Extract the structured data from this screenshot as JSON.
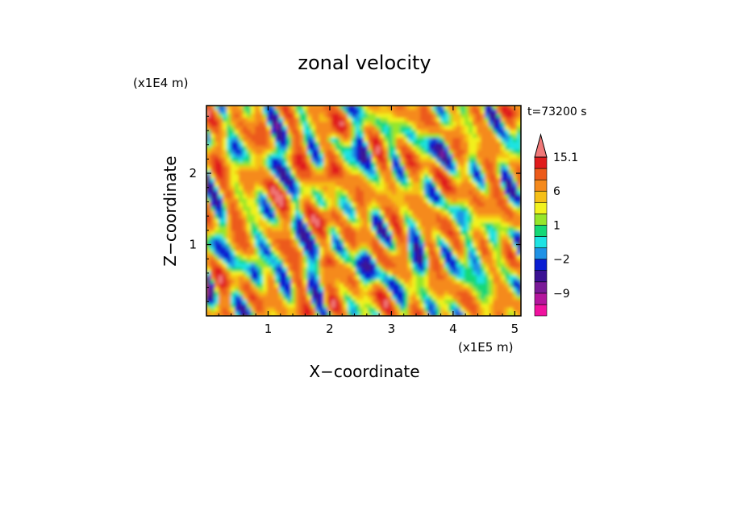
{
  "chart_data": {
    "type": "heatmap",
    "title": "zonal velocity",
    "time_label": "t=73200 s",
    "xlabel": "X−coordinate",
    "ylabel": "Z−coordinate",
    "x_scale_label": "(x1E5 m)",
    "y_scale_label": "(x1E4 m)",
    "xlim": [
      0.0,
      5.1
    ],
    "ylim": [
      0.0,
      2.95
    ],
    "x_ticks": [
      {
        "value": 1,
        "label": "1"
      },
      {
        "value": 2,
        "label": "2"
      },
      {
        "value": 3,
        "label": "3"
      },
      {
        "value": 4,
        "label": "4"
      },
      {
        "value": 5,
        "label": "5"
      }
    ],
    "y_ticks": [
      {
        "value": 1,
        "label": "1"
      },
      {
        "value": 2,
        "label": "2"
      }
    ],
    "colorbar": {
      "levels": [
        -15,
        -12,
        -9,
        -6,
        -3,
        -2,
        -1,
        0,
        1,
        2,
        3,
        6,
        9,
        12,
        15.1
      ],
      "colors": [
        "#f0129f",
        "#b4169d",
        "#7a1a98",
        "#3a1294",
        "#0a1ed2",
        "#1f92e6",
        "#1ee3e3",
        "#14d876",
        "#96e62a",
        "#f2f21e",
        "#f5bf16",
        "#f58a1c",
        "#ec5a1a",
        "#e01c1c",
        "#f07878",
        "#f8c8c8"
      ],
      "labels": [
        {
          "value": -9,
          "label": "−9"
        },
        {
          "value": -2,
          "label": "−2"
        },
        {
          "value": 1,
          "label": "1"
        },
        {
          "value": 6,
          "label": "6"
        },
        {
          "value": 15.1,
          "label": "15.1"
        }
      ],
      "extend": "max"
    },
    "field_summary": {
      "dominant_range": [
        0,
        6
      ],
      "min_visible": -12,
      "max_visible": 15
    }
  }
}
